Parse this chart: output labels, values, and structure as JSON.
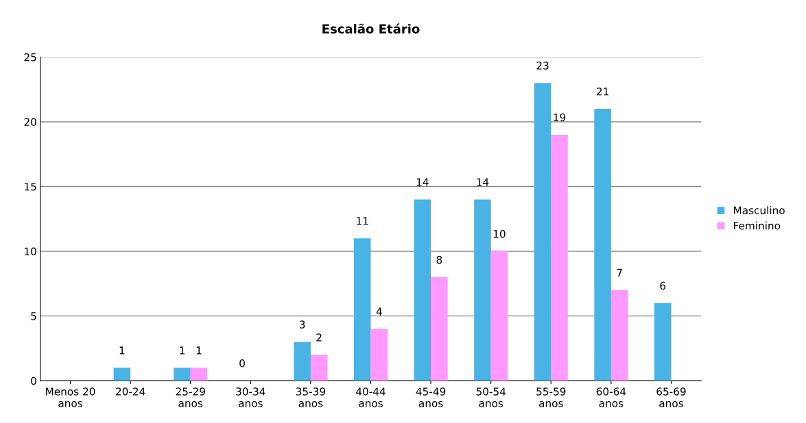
{
  "chart_data": {
    "type": "bar",
    "title": "Escalão Etário",
    "categories": [
      "Menos 20\nanos",
      "20-24",
      "25-29\nanos",
      "30-34\nanos",
      "35-39\nanos",
      "40-44\nanos",
      "45-49\nanos",
      "50-54\nanos",
      "55-59\nanos",
      "60-64\nanos",
      "65-69\nanos"
    ],
    "series": [
      {
        "name": "Masculino",
        "color": "#4ab3e6",
        "values": [
          0,
          1,
          1,
          0,
          3,
          11,
          14,
          14,
          23,
          21,
          6
        ],
        "value_labels": [
          null,
          "1",
          "1",
          "0",
          "3",
          "11",
          "14",
          "14",
          "23",
          "21",
          "6"
        ]
      },
      {
        "name": "Feminino",
        "color": "#ff99ff",
        "values": [
          0,
          0,
          1,
          0,
          2,
          4,
          8,
          10,
          19,
          7,
          0
        ],
        "value_labels": [
          null,
          null,
          "1",
          null,
          "2",
          "4",
          "8",
          "10",
          "19",
          "7",
          null
        ]
      }
    ],
    "ylim": [
      0,
      25
    ],
    "yticks": [
      0,
      5,
      10,
      15,
      20,
      25
    ],
    "grid": "y",
    "legend": "right"
  }
}
